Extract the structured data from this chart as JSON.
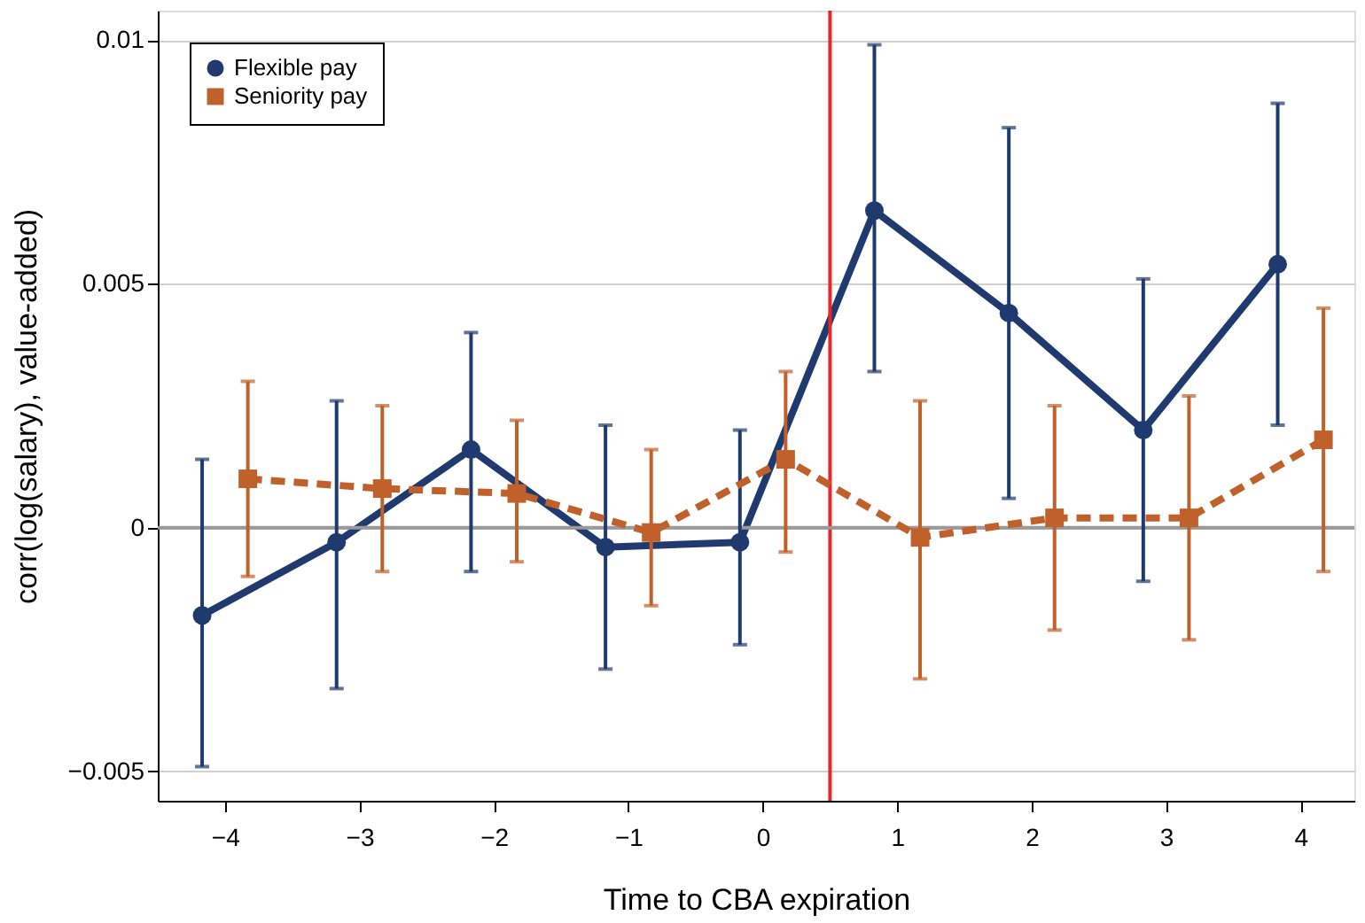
{
  "chart_data": {
    "type": "line",
    "xlabel": "Time to CBA expiration",
    "ylabel": "corr(log(salary), value-added)",
    "xlim": [
      -4.5,
      4.4
    ],
    "ylim": [
      -0.0056,
      0.0106
    ],
    "xticks": [
      {
        "value": -4,
        "label": "−4"
      },
      {
        "value": -3,
        "label": "−3"
      },
      {
        "value": -2,
        "label": "−2"
      },
      {
        "value": -1,
        "label": "−1"
      },
      0,
      1,
      2,
      3,
      4
    ],
    "yticks": [
      {
        "value": -0.005,
        "label": "−0.005"
      },
      0,
      0.005,
      0.01
    ],
    "grid": "y",
    "legend": "top left",
    "series": [
      {
        "name": "Flexible pay",
        "color": "#1f3a6e",
        "marker": "circle",
        "line_style": "solid",
        "x": [
          -4.17,
          -3.17,
          -2.17,
          -1.17,
          -0.17,
          0.83,
          1.83,
          2.83,
          3.83
        ],
        "values": [
          -0.0018,
          -0.0003,
          0.0016,
          -0.0004,
          -0.0003,
          0.0065,
          0.0044,
          0.002,
          0.0054
        ],
        "errors": [
          [
            -0.0049,
            0.0014
          ],
          [
            -0.0033,
            0.0026
          ],
          [
            -0.0009,
            0.004
          ],
          [
            -0.0029,
            0.0021
          ],
          [
            -0.0024,
            0.002
          ],
          [
            0.0032,
            0.0099
          ],
          [
            0.0006,
            0.0082
          ],
          [
            -0.0011,
            0.0051
          ],
          [
            0.0021,
            0.0087
          ]
        ]
      },
      {
        "name": "Seniority pay",
        "color": "#c0602a",
        "marker": "square",
        "line_style": "dashed",
        "x": [
          -3.83,
          -2.83,
          -1.83,
          -0.83,
          0.17,
          1.17,
          2.17,
          3.17,
          4.17
        ],
        "values": [
          0.001,
          0.0008,
          0.0007,
          -0.0001,
          0.0014,
          -0.0002,
          0.0002,
          0.0002,
          0.0018
        ],
        "errors": [
          [
            -0.001,
            0.003
          ],
          [
            -0.0009,
            0.0025
          ],
          [
            -0.0007,
            0.0022
          ],
          [
            -0.0016,
            0.0016
          ],
          [
            -0.0005,
            0.0032
          ],
          [
            -0.0031,
            0.0026
          ],
          [
            -0.0021,
            0.0025
          ],
          [
            -0.0023,
            0.0027
          ],
          [
            -0.0009,
            0.0045
          ]
        ]
      }
    ],
    "ref_lines": [
      {
        "axis": "x",
        "value": 0.5,
        "color": "#e8262a"
      },
      {
        "axis": "y",
        "value": 0,
        "color": "#999999"
      }
    ]
  }
}
